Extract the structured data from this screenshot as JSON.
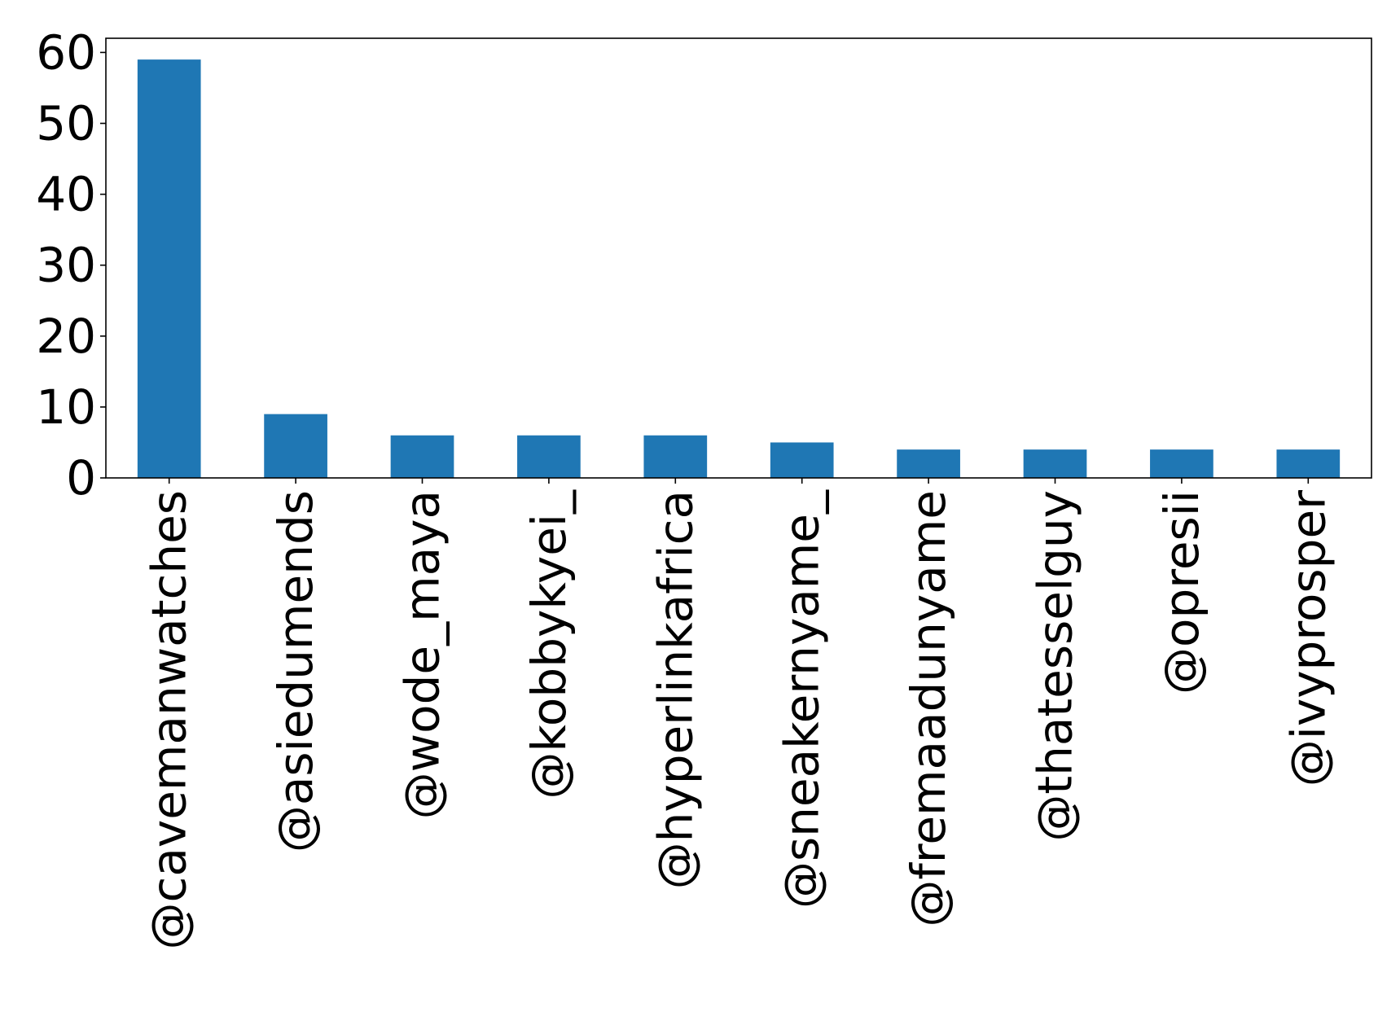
{
  "chart_data": {
    "type": "bar",
    "categories": [
      "@cavemanwatches",
      "@asiedumends",
      "@wode_maya",
      "@kobbykyei_",
      "@hyperlinkafrica",
      "@sneakernyame_",
      "@fremaadunyame",
      "@thatesselguy",
      "@opresii",
      "@ivyprosper"
    ],
    "values": [
      59,
      9,
      6,
      6,
      6,
      5,
      4,
      4,
      4,
      4
    ],
    "ylim": [
      0,
      62
    ],
    "yticks": [
      0,
      10,
      20,
      30,
      40,
      50,
      60
    ],
    "title": "",
    "xlabel": "",
    "ylabel": "",
    "grid": false,
    "legend": false,
    "bar_color": "#1f77b4",
    "x_tick_rotation": -90
  }
}
